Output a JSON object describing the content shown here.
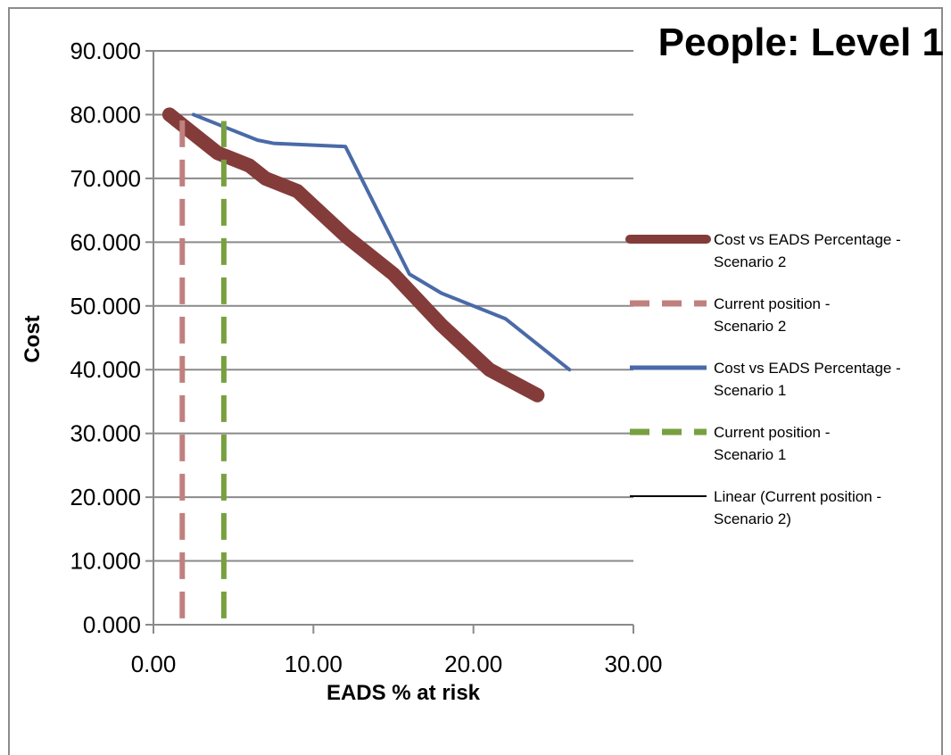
{
  "chart_data": {
    "type": "line",
    "title": "People: Level 1",
    "xlabel": "EADS % at risk",
    "ylabel": "Cost",
    "xlim": [
      0,
      30
    ],
    "ylim": [
      0,
      90
    ],
    "x_ticks": [
      "0.00",
      "10.00",
      "20.00",
      "30.00"
    ],
    "y_ticks": [
      "0.000",
      "10.000",
      "20.000",
      "30.000",
      "40.000",
      "50.000",
      "60.000",
      "70.000",
      "80.000",
      "90.000"
    ],
    "grid": "horizontal",
    "legend_position": "right",
    "series": [
      {
        "name": "Cost vs EADS Percentage - Scenario 2",
        "color": "#833c3a",
        "style": "thick-solid",
        "points": [
          [
            1.0,
            80
          ],
          [
            2.5,
            77
          ],
          [
            4.0,
            74
          ],
          [
            6.0,
            72
          ],
          [
            7.0,
            70
          ],
          [
            9.0,
            68
          ],
          [
            12.0,
            61
          ],
          [
            15.0,
            55
          ],
          [
            18.0,
            47
          ],
          [
            21.0,
            40
          ],
          [
            24.0,
            36
          ]
        ]
      },
      {
        "name": "Current position - Scenario 2",
        "color": "#c0807f",
        "style": "dashed",
        "points": [
          [
            1.8,
            1
          ],
          [
            1.8,
            80
          ]
        ]
      },
      {
        "name": "Cost vs EADS Percentage - Scenario 1",
        "color": "#4a6aa8",
        "style": "solid",
        "points": [
          [
            2.5,
            80
          ],
          [
            4.5,
            78
          ],
          [
            6.5,
            76
          ],
          [
            7.5,
            75.5
          ],
          [
            12.0,
            75
          ],
          [
            16.0,
            55
          ],
          [
            18.0,
            52
          ],
          [
            22.0,
            48
          ],
          [
            26.0,
            40
          ]
        ]
      },
      {
        "name": "Current position - Scenario 1",
        "color": "#78a040",
        "style": "dashed",
        "points": [
          [
            4.4,
            1
          ],
          [
            4.4,
            79
          ]
        ]
      },
      {
        "name": "Linear (Current position - Scenario 2)",
        "color": "#000000",
        "style": "thin-solid",
        "points": []
      }
    ]
  }
}
